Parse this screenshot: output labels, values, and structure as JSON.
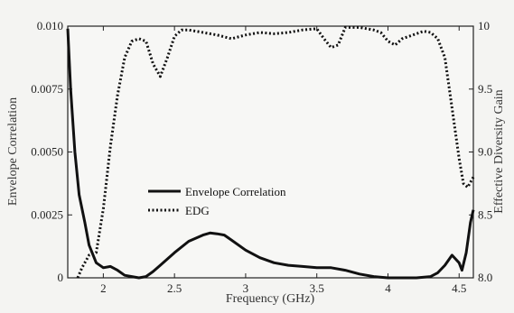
{
  "chart_data": {
    "type": "line",
    "xlabel": "Frequency (GHz)",
    "ylabel_left": "Envelope Correlation",
    "ylabel_right": "Effective Diversity Gain",
    "xlim": [
      1.75,
      4.6
    ],
    "ylim_left": [
      0,
      0.01
    ],
    "ylim_right": [
      8.0,
      10
    ],
    "x_ticks": [
      {
        "value": 2,
        "label": "2"
      },
      {
        "value": 2.5,
        "label": "2.5"
      },
      {
        "value": 3,
        "label": "3"
      },
      {
        "value": 3.5,
        "label": "3.5"
      },
      {
        "value": 4,
        "label": "4"
      },
      {
        "value": 4.5,
        "label": "4.5"
      }
    ],
    "y_ticks_left": [
      {
        "value": 0,
        "label": "0"
      },
      {
        "value": 0.0025,
        "label": "0.0025"
      },
      {
        "value": 0.005,
        "label": "0.0050"
      },
      {
        "value": 0.0075,
        "label": "0.0075"
      },
      {
        "value": 0.01,
        "label": "0.010"
      }
    ],
    "y_ticks_right": [
      {
        "value": 8.0,
        "label": "8.0"
      },
      {
        "value": 8.5,
        "label": "8.5"
      },
      {
        "value": 9.0,
        "label": "9.0"
      },
      {
        "value": 9.5,
        "label": "9.5"
      },
      {
        "value": 10,
        "label": "10"
      }
    ],
    "legend": {
      "placement": "center-left",
      "entries": [
        {
          "label": "Envelope Correlation",
          "style": "solid"
        },
        {
          "label": "EDG",
          "style": "dotted"
        }
      ]
    },
    "series": [
      {
        "name": "Envelope Correlation",
        "axis": "left",
        "style": "solid",
        "color": "#111111",
        "x": [
          1.75,
          1.77,
          1.8,
          1.83,
          1.87,
          1.9,
          1.95,
          2.0,
          2.05,
          2.1,
          2.15,
          2.2,
          2.25,
          2.3,
          2.35,
          2.4,
          2.5,
          2.6,
          2.7,
          2.75,
          2.8,
          2.85,
          2.9,
          3.0,
          3.1,
          3.2,
          3.3,
          3.4,
          3.5,
          3.6,
          3.7,
          3.8,
          3.9,
          4.0,
          4.1,
          4.2,
          4.3,
          4.35,
          4.4,
          4.45,
          4.5,
          4.52,
          4.55,
          4.58,
          4.6
        ],
        "values": [
          0.0099,
          0.0075,
          0.005,
          0.0033,
          0.0022,
          0.0013,
          0.0006,
          0.0004,
          0.00045,
          0.0003,
          0.0001,
          5e-05,
          0.0,
          5e-05,
          0.00025,
          0.0005,
          0.001,
          0.00145,
          0.0017,
          0.00178,
          0.00175,
          0.0017,
          0.0015,
          0.0011,
          0.0008,
          0.0006,
          0.0005,
          0.00045,
          0.0004,
          0.0004,
          0.0003,
          0.00015,
          5e-05,
          0.0,
          0.0,
          0.0,
          5e-05,
          0.0002,
          0.0005,
          0.0009,
          0.0006,
          0.0003,
          0.001,
          0.0022,
          0.0027
        ]
      },
      {
        "name": "EDG",
        "axis": "right",
        "style": "dotted",
        "color": "#111111",
        "x": [
          1.82,
          1.85,
          1.9,
          1.95,
          2.0,
          2.05,
          2.1,
          2.15,
          2.2,
          2.25,
          2.3,
          2.35,
          2.4,
          2.45,
          2.5,
          2.55,
          2.6,
          2.7,
          2.8,
          2.9,
          3.0,
          3.1,
          3.2,
          3.3,
          3.4,
          3.5,
          3.55,
          3.6,
          3.65,
          3.7,
          3.8,
          3.9,
          3.95,
          4.0,
          4.05,
          4.1,
          4.15,
          4.2,
          4.25,
          4.3,
          4.35,
          4.4,
          4.45,
          4.5,
          4.53,
          4.56,
          4.6
        ],
        "values": [
          8.0,
          8.08,
          8.18,
          8.2,
          8.55,
          9.05,
          9.45,
          9.75,
          9.88,
          9.9,
          9.88,
          9.7,
          9.6,
          9.75,
          9.92,
          9.97,
          9.97,
          9.95,
          9.93,
          9.9,
          9.93,
          9.95,
          9.94,
          9.95,
          9.97,
          9.98,
          9.9,
          9.83,
          9.85,
          9.99,
          9.99,
          9.97,
          9.95,
          9.88,
          9.85,
          9.9,
          9.92,
          9.94,
          9.96,
          9.95,
          9.9,
          9.75,
          9.35,
          8.95,
          8.75,
          8.72,
          8.8
        ]
      }
    ]
  }
}
